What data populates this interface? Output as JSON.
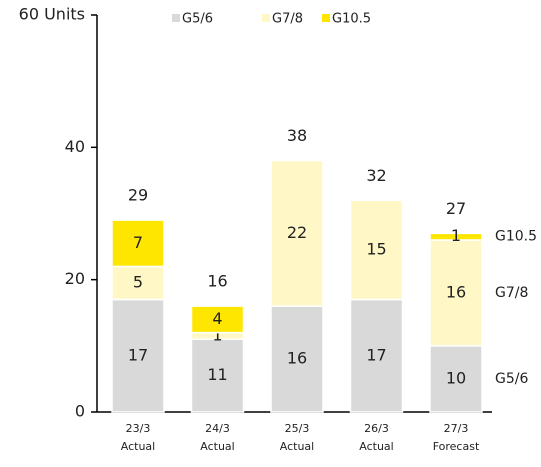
{
  "chart_data": {
    "type": "stacked-bar",
    "categories": [
      [
        "23/3",
        "Actual"
      ],
      [
        "24/3",
        "Actual"
      ],
      [
        "25/3",
        "Actual"
      ],
      [
        "26/3",
        "Actual"
      ],
      [
        "27/3",
        "Forecast"
      ]
    ],
    "series": [
      {
        "name": "G5/6",
        "color": "#d9d9d9",
        "values": [
          17,
          11,
          16,
          17,
          10
        ]
      },
      {
        "name": "G7/8",
        "color": "#fff8c6",
        "values": [
          5,
          1,
          22,
          15,
          16
        ]
      },
      {
        "name": "G10.5",
        "color": "#ffe600",
        "values": [
          7,
          4,
          0,
          0,
          1
        ]
      }
    ],
    "totals": [
      29,
      16,
      38,
      32,
      27
    ],
    "ylim": [
      0,
      60
    ],
    "yticks": [
      0,
      20,
      40,
      {
        "value": 60,
        "label": "60 Units"
      }
    ]
  }
}
